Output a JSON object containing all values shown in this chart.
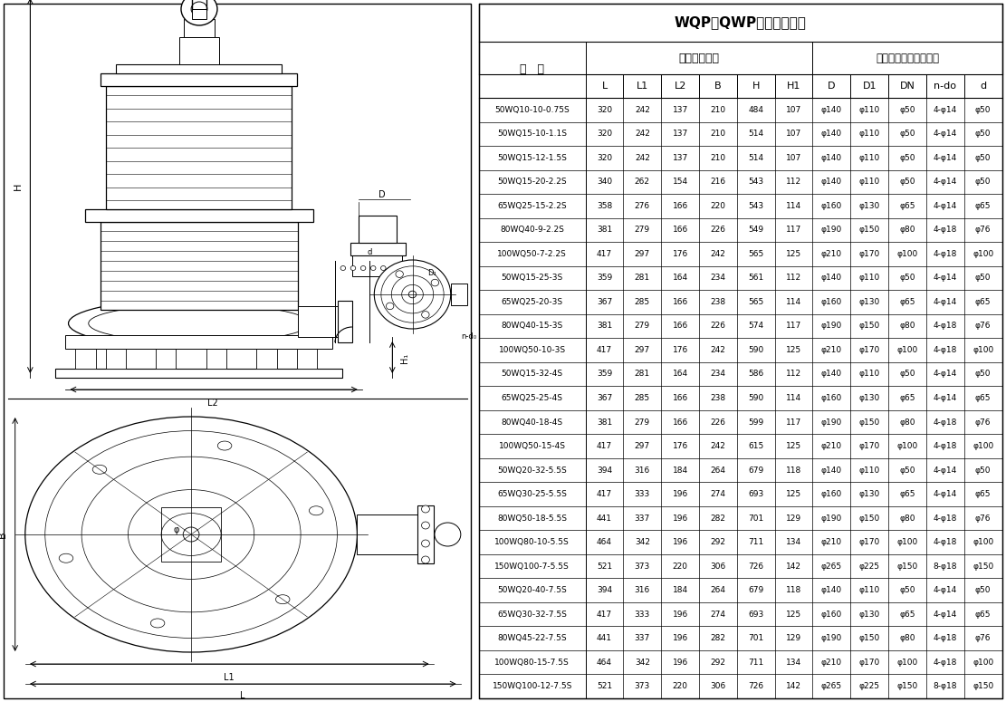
{
  "title": "WQP（QWP）安装尺寸表",
  "col_header_type": "型   号",
  "col_header_ext": "外形安装尺寸",
  "col_header_flange": "泵出口法兰及连接尺寸",
  "col_header_row2": [
    "L",
    "L1",
    "L2",
    "B",
    "H",
    "H1",
    "D",
    "D1",
    "DN",
    "n-do",
    "d"
  ],
  "rows_display": [
    [
      "50WQ10-10-0.75S",
      "320",
      "242",
      "137",
      "210",
      "484",
      "107",
      "φ140",
      "φ110",
      "φ50",
      "4-φ14",
      "φ50"
    ],
    [
      "50WQ15-10-1.1S",
      "320",
      "242",
      "137",
      "210",
      "514",
      "107",
      "φ140",
      "φ110",
      "φ50",
      "4-φ14",
      "φ50"
    ],
    [
      "50WQ15-12-1.5S",
      "320",
      "242",
      "137",
      "210",
      "514",
      "107",
      "φ140",
      "φ110",
      "φ50",
      "4-φ14",
      "φ50"
    ],
    [
      "50WQ15-20-2.2S",
      "340",
      "262",
      "154",
      "216",
      "543",
      "112",
      "φ140",
      "φ110",
      "φ50",
      "4-φ14",
      "φ50"
    ],
    [
      "65WQ25-15-2.2S",
      "358",
      "276",
      "166",
      "220",
      "543",
      "114",
      "φ160",
      "φ130",
      "φ65",
      "4-φ14",
      "φ65"
    ],
    [
      "80WQ40-9-2.2S",
      "381",
      "279",
      "166",
      "226",
      "549",
      "117",
      "φ190",
      "φ150",
      "φ80",
      "4-φ18",
      "φ76"
    ],
    [
      "100WQ50-7-2.2S",
      "417",
      "297",
      "176",
      "242",
      "565",
      "125",
      "φ210",
      "φ170",
      "φ100",
      "4-φ18",
      "φ100"
    ],
    [
      "50WQ15-25-3S",
      "359",
      "281",
      "164",
      "234",
      "561",
      "112",
      "φ140",
      "φ110",
      "φ50",
      "4-φ14",
      "φ50"
    ],
    [
      "65WQ25-20-3S",
      "367",
      "285",
      "166",
      "238",
      "565",
      "114",
      "φ160",
      "φ130",
      "φ65",
      "4-φ14",
      "φ65"
    ],
    [
      "80WQ40-15-3S",
      "381",
      "279",
      "166",
      "226",
      "574",
      "117",
      "φ190",
      "φ150",
      "φ80",
      "4-φ18",
      "φ76"
    ],
    [
      "100WQ50-10-3S",
      "417",
      "297",
      "176",
      "242",
      "590",
      "125",
      "φ210",
      "φ170",
      "φ100",
      "4-φ18",
      "φ100"
    ],
    [
      "50WQ15-32-4S",
      "359",
      "281",
      "164",
      "234",
      "586",
      "112",
      "φ140",
      "φ110",
      "φ50",
      "4-φ14",
      "φ50"
    ],
    [
      "65WQ25-25-4S",
      "367",
      "285",
      "166",
      "238",
      "590",
      "114",
      "φ160",
      "φ130",
      "φ65",
      "4-φ14",
      "φ65"
    ],
    [
      "80WQ40-18-4S",
      "381",
      "279",
      "166",
      "226",
      "599",
      "117",
      "φ190",
      "φ150",
      "φ80",
      "4-φ18",
      "φ76"
    ],
    [
      "100WQ50-15-4S",
      "417",
      "297",
      "176",
      "242",
      "615",
      "125",
      "φ210",
      "φ170",
      "φ100",
      "4-φ18",
      "φ100"
    ],
    [
      "50WQ20-32-5.5S",
      "394",
      "316",
      "184",
      "264",
      "679",
      "118",
      "φ140",
      "φ110",
      "φ50",
      "4-φ14",
      "φ50"
    ],
    [
      "65WQ30-25-5.5S",
      "417",
      "333",
      "196",
      "274",
      "693",
      "125",
      "φ160",
      "φ130",
      "φ65",
      "4-φ14",
      "φ65"
    ],
    [
      "80WQ50-18-5.5S",
      "441",
      "337",
      "196",
      "282",
      "701",
      "129",
      "φ190",
      "φ150",
      "φ80",
      "4-φ18",
      "φ76"
    ],
    [
      "100WQ80-10-5.5S",
      "464",
      "342",
      "196",
      "292",
      "711",
      "134",
      "φ210",
      "φ170",
      "φ100",
      "4-φ18",
      "φ100"
    ],
    [
      "150WQ100-7-5.5S",
      "521",
      "373",
      "220",
      "306",
      "726",
      "142",
      "φ265",
      "φ225",
      "φ150",
      "8-φ18",
      "φ150"
    ],
    [
      "50WQ20-40-7.5S",
      "394",
      "316",
      "184",
      "264",
      "679",
      "118",
      "φ140",
      "φ110",
      "φ50",
      "4-φ14",
      "φ50"
    ],
    [
      "65WQ30-32-7.5S",
      "417",
      "333",
      "196",
      "274",
      "693",
      "125",
      "φ160",
      "φ130",
      "φ65",
      "4-φ14",
      "φ65"
    ],
    [
      "80WQ45-22-7.5S",
      "441",
      "337",
      "196",
      "282",
      "701",
      "129",
      "φ190",
      "φ150",
      "φ80",
      "4-φ18",
      "φ76"
    ],
    [
      "100WQ80-15-7.5S",
      "464",
      "342",
      "196",
      "292",
      "711",
      "134",
      "φ210",
      "φ170",
      "φ100",
      "4-φ18",
      "φ100"
    ],
    [
      "150WQ100-12-7.5S",
      "521",
      "373",
      "220",
      "306",
      "726",
      "142",
      "φ265",
      "φ225",
      "φ150",
      "8-φ18",
      "φ150"
    ]
  ],
  "bg_color": "#ffffff",
  "line_color": "#000000"
}
